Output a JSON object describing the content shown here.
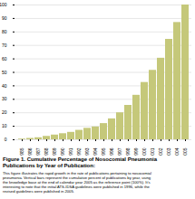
{
  "chart_data": {
    "type": "bar",
    "title": "Figure 1. Cumulative Percentage of Nosocomial Pneumonia\nPublications by Year of Publication:",
    "caption": "This figure illustrates the rapid growth in the rate of publications pertaining to nosocomial\npneumonia. Vertical bars represent the cumulative percent of publications by year, using\nthe knowledge base at the end of calendar year 2005 as the reference point (100%). It's\ninteresting to note that the initial ATS-IDSA guidelines were published in 1996, while the\nrevised guidelines were published in 2005.",
    "categories": [
      "1985",
      "1986",
      "1987",
      "1988",
      "1989",
      "1990",
      "1991",
      "1992",
      "1993",
      "1994",
      "1995",
      "1996",
      "1997",
      "1998",
      "1999",
      "2000",
      "2001",
      "2002",
      "2003",
      "2004",
      "2005"
    ],
    "values": [
      0.5,
      1.0,
      1.5,
      2.5,
      3.5,
      4.5,
      5.5,
      7.0,
      8.5,
      9.5,
      12.0,
      15.5,
      20.0,
      25.5,
      33.0,
      42.5,
      51.5,
      60.5,
      74.5,
      87.0,
      100.0
    ],
    "color": "#c5c87a",
    "ylim": [
      0,
      100
    ],
    "yticks": [
      0,
      10,
      20,
      30,
      40,
      50,
      60,
      70,
      80,
      90,
      100
    ],
    "grid": true
  }
}
